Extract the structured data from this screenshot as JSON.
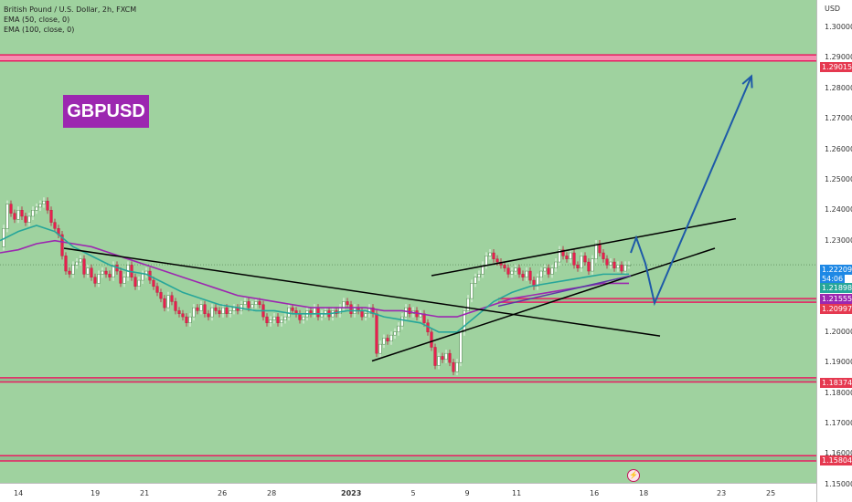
{
  "legend": {
    "title": "British Pound / U.S. Dollar, 2h, FXCM",
    "ema50": "EMA (50, close, 0)",
    "ema100": "EMA (100, close, 0)"
  },
  "badge": "GBPUSD",
  "currency": "USD",
  "price_tags": [
    {
      "value": "1.29015",
      "color": "#e53950"
    },
    {
      "value": "1.22209",
      "color": "#1e88e5"
    },
    {
      "value": "54:06",
      "color": "#1e88e5"
    },
    {
      "value": "1.21898",
      "color": "#26a69a"
    },
    {
      "value": "1.21555",
      "color": "#9c27b0"
    },
    {
      "value": "1.20997",
      "color": "#e53950"
    },
    {
      "value": "1.18374",
      "color": "#e53950"
    },
    {
      "value": "1.15804",
      "color": "#e53950"
    }
  ],
  "chart_data": {
    "type": "candlestick",
    "symbol": "GBPUSD",
    "timeframe": "2h",
    "ylim": [
      1.1505,
      1.309
    ],
    "y_ticks": [
      "1.30000",
      "1.29000",
      "1.28000",
      "1.27000",
      "1.26000",
      "1.25000",
      "1.24000",
      "1.23000",
      "1.22000",
      "1.21000",
      "1.20000",
      "1.19000",
      "1.18000",
      "1.17000",
      "1.16000",
      "1.15000"
    ],
    "x_ticks": [
      "14",
      "19",
      "21",
      "26",
      "28",
      "2023",
      "5",
      "9",
      "11",
      "16",
      "18",
      "23",
      "25"
    ],
    "close_path": [
      [
        0,
        1.228
      ],
      [
        4,
        1.234
      ],
      [
        8,
        1.242
      ],
      [
        12,
        1.239
      ],
      [
        16,
        1.237
      ],
      [
        20,
        1.24
      ],
      [
        24,
        1.238
      ],
      [
        28,
        1.236
      ],
      [
        32,
        1.238
      ],
      [
        36,
        1.24
      ],
      [
        40,
        1.241
      ],
      [
        44,
        1.242
      ],
      [
        48,
        1.243
      ],
      [
        52,
        1.24
      ],
      [
        56,
        1.236
      ],
      [
        60,
        1.234
      ],
      [
        64,
        1.232
      ],
      [
        68,
        1.225
      ],
      [
        72,
        1.22
      ],
      [
        76,
        1.219
      ],
      [
        80,
        1.222
      ],
      [
        84,
        1.223
      ],
      [
        88,
        1.224
      ],
      [
        92,
        1.219
      ],
      [
        96,
        1.221
      ],
      [
        100,
        1.218
      ],
      [
        104,
        1.216
      ],
      [
        108,
        1.219
      ],
      [
        112,
        1.22
      ],
      [
        116,
        1.219
      ],
      [
        120,
        1.218
      ],
      [
        124,
        1.222
      ],
      [
        128,
        1.22
      ],
      [
        132,
        1.216
      ],
      [
        136,
        1.218
      ],
      [
        140,
        1.222
      ],
      [
        144,
        1.218
      ],
      [
        148,
        1.215
      ],
      [
        152,
        1.217
      ],
      [
        156,
        1.219
      ],
      [
        160,
        1.22
      ],
      [
        164,
        1.217
      ],
      [
        168,
        1.215
      ],
      [
        172,
        1.213
      ],
      [
        176,
        1.211
      ],
      [
        180,
        1.208
      ],
      [
        184,
        1.212
      ],
      [
        188,
        1.21
      ],
      [
        192,
        1.207
      ],
      [
        196,
        1.206
      ],
      [
        200,
        1.205
      ],
      [
        204,
        1.203
      ],
      [
        208,
        1.205
      ],
      [
        212,
        1.208
      ],
      [
        216,
        1.207
      ],
      [
        220,
        1.209
      ],
      [
        224,
        1.206
      ],
      [
        228,
        1.205
      ],
      [
        232,
        1.208
      ],
      [
        236,
        1.207
      ],
      [
        240,
        1.206
      ],
      [
        244,
        1.208
      ],
      [
        248,
        1.206
      ],
      [
        252,
        1.207
      ],
      [
        256,
        1.208
      ],
      [
        260,
        1.207
      ],
      [
        264,
        1.209
      ],
      [
        268,
        1.21
      ],
      [
        272,
        1.208
      ],
      [
        276,
        1.209
      ],
      [
        280,
        1.21
      ],
      [
        284,
        1.209
      ],
      [
        288,
        1.205
      ],
      [
        292,
        1.203
      ],
      [
        296,
        1.204
      ],
      [
        300,
        1.205
      ],
      [
        304,
        1.203
      ],
      [
        308,
        1.204
      ],
      [
        312,
        1.205
      ],
      [
        316,
        1.208
      ],
      [
        320,
        1.207
      ],
      [
        324,
        1.206
      ],
      [
        328,
        1.204
      ],
      [
        332,
        1.205
      ],
      [
        336,
        1.207
      ],
      [
        340,
        1.206
      ],
      [
        344,
        1.208
      ],
      [
        348,
        1.205
      ],
      [
        352,
        1.206
      ],
      [
        356,
        1.207
      ],
      [
        360,
        1.205
      ],
      [
        364,
        1.207
      ],
      [
        368,
        1.206
      ],
      [
        372,
        1.208
      ],
      [
        376,
        1.21
      ],
      [
        380,
        1.209
      ],
      [
        384,
        1.206
      ],
      [
        388,
        1.208
      ],
      [
        392,
        1.207
      ],
      [
        396,
        1.205
      ],
      [
        400,
        1.206
      ],
      [
        404,
        1.208
      ],
      [
        408,
        1.206
      ],
      [
        412,
        1.193
      ],
      [
        416,
        1.196
      ],
      [
        420,
        1.198
      ],
      [
        424,
        1.197
      ],
      [
        428,
        1.199
      ],
      [
        432,
        1.2
      ],
      [
        436,
        1.202
      ],
      [
        440,
        1.205
      ],
      [
        444,
        1.208
      ],
      [
        448,
        1.206
      ],
      [
        452,
        1.207
      ],
      [
        456,
        1.205
      ],
      [
        460,
        1.206
      ],
      [
        464,
        1.203
      ],
      [
        468,
        1.2
      ],
      [
        472,
        1.195
      ],
      [
        476,
        1.189
      ],
      [
        480,
        1.192
      ],
      [
        484,
        1.191
      ],
      [
        488,
        1.193
      ],
      [
        492,
        1.19
      ],
      [
        496,
        1.187
      ],
      [
        500,
        1.19
      ],
      [
        504,
        1.2
      ],
      [
        508,
        1.207
      ],
      [
        512,
        1.211
      ],
      [
        516,
        1.216
      ],
      [
        520,
        1.218
      ],
      [
        524,
        1.219
      ],
      [
        528,
        1.222
      ],
      [
        532,
        1.225
      ],
      [
        536,
        1.226
      ],
      [
        540,
        1.224
      ],
      [
        544,
        1.223
      ],
      [
        548,
        1.222
      ],
      [
        552,
        1.221
      ],
      [
        556,
        1.219
      ],
      [
        560,
        1.22
      ],
      [
        564,
        1.221
      ],
      [
        568,
        1.219
      ],
      [
        572,
        1.218
      ],
      [
        576,
        1.22
      ],
      [
        580,
        1.217
      ],
      [
        584,
        1.215
      ],
      [
        588,
        1.218
      ],
      [
        592,
        1.22
      ],
      [
        596,
        1.221
      ],
      [
        600,
        1.219
      ],
      [
        604,
        1.221
      ],
      [
        608,
        1.223
      ],
      [
        612,
        1.227
      ],
      [
        616,
        1.225
      ],
      [
        620,
        1.224
      ],
      [
        624,
        1.226
      ],
      [
        628,
        1.222
      ],
      [
        632,
        1.221
      ],
      [
        636,
        1.225
      ],
      [
        640,
        1.223
      ],
      [
        644,
        1.22
      ],
      [
        648,
        1.224
      ],
      [
        652,
        1.229
      ],
      [
        656,
        1.226
      ],
      [
        660,
        1.224
      ],
      [
        664,
        1.222
      ],
      [
        668,
        1.223
      ],
      [
        672,
        1.221
      ],
      [
        676,
        1.222
      ],
      [
        680,
        1.22
      ],
      [
        684,
        1.222
      ],
      [
        688,
        1.222
      ]
    ],
    "ema50_path": [
      [
        0,
        1.23
      ],
      [
        20,
        1.233
      ],
      [
        40,
        1.235
      ],
      [
        60,
        1.233
      ],
      [
        80,
        1.228
      ],
      [
        100,
        1.225
      ],
      [
        120,
        1.222
      ],
      [
        140,
        1.22
      ],
      [
        160,
        1.219
      ],
      [
        180,
        1.216
      ],
      [
        200,
        1.213
      ],
      [
        220,
        1.211
      ],
      [
        240,
        1.209
      ],
      [
        260,
        1.208
      ],
      [
        280,
        1.207
      ],
      [
        300,
        1.207
      ],
      [
        320,
        1.206
      ],
      [
        340,
        1.206
      ],
      [
        360,
        1.206
      ],
      [
        380,
        1.207
      ],
      [
        400,
        1.207
      ],
      [
        420,
        1.205
      ],
      [
        440,
        1.204
      ],
      [
        460,
        1.203
      ],
      [
        480,
        1.2
      ],
      [
        500,
        1.2
      ],
      [
        520,
        1.205
      ],
      [
        540,
        1.21
      ],
      [
        560,
        1.213
      ],
      [
        580,
        1.215
      ],
      [
        600,
        1.216
      ],
      [
        620,
        1.217
      ],
      [
        640,
        1.218
      ],
      [
        660,
        1.219
      ],
      [
        688,
        1.219
      ]
    ],
    "ema100_path": [
      [
        0,
        1.226
      ],
      [
        20,
        1.227
      ],
      [
        40,
        1.229
      ],
      [
        60,
        1.23
      ],
      [
        80,
        1.229
      ],
      [
        100,
        1.228
      ],
      [
        120,
        1.226
      ],
      [
        140,
        1.224
      ],
      [
        160,
        1.222
      ],
      [
        180,
        1.22
      ],
      [
        200,
        1.218
      ],
      [
        220,
        1.216
      ],
      [
        240,
        1.214
      ],
      [
        260,
        1.212
      ],
      [
        280,
        1.211
      ],
      [
        300,
        1.21
      ],
      [
        320,
        1.209
      ],
      [
        340,
        1.208
      ],
      [
        360,
        1.208
      ],
      [
        380,
        1.208
      ],
      [
        400,
        1.208
      ],
      [
        420,
        1.207
      ],
      [
        440,
        1.207
      ],
      [
        460,
        1.206
      ],
      [
        480,
        1.205
      ],
      [
        500,
        1.205
      ],
      [
        520,
        1.207
      ],
      [
        540,
        1.209
      ],
      [
        560,
        1.211
      ],
      [
        580,
        1.212
      ],
      [
        600,
        1.213
      ],
      [
        620,
        1.214
      ],
      [
        640,
        1.215
      ],
      [
        660,
        1.216
      ],
      [
        688,
        1.216
      ]
    ],
    "trendlines": [
      {
        "from": [
          70,
          1.2275
        ],
        "to": [
          722,
          1.1987
        ],
        "color": "#000000"
      },
      {
        "from": [
          407,
          1.1905
        ],
        "to": [
          782,
          1.2275
        ],
        "color": "#000000"
      },
      {
        "from": [
          472,
          1.2185
        ],
        "to": [
          805,
          1.2372
        ],
        "color": "#000000"
      },
      {
        "from": [
          545,
          1.2085
        ],
        "to": [
          690,
          1.2185
        ],
        "color": "#5c35a6"
      }
    ],
    "projection": [
      [
        690,
        1.226
      ],
      [
        696,
        1.231
      ],
      [
        706,
        1.2225
      ],
      [
        716,
        1.2095
      ],
      [
        822,
        1.284
      ]
    ],
    "zones": [
      {
        "ymin": 1.289,
        "ymax": 1.291,
        "fill": "#f48fb1",
        "edge": "#e91e63"
      },
      {
        "ymin": 1.1836,
        "ymax": 1.185,
        "fill": "#8fbf8f",
        "edge": "#e91e63"
      },
      {
        "ymin": 1.1577,
        "ymax": 1.1594,
        "fill": "#8fbf8f",
        "edge": "#e91e63"
      },
      {
        "ymin": 1.2098,
        "ymax": 1.211,
        "fill": "#8fbf8f",
        "edge": "#e91e63",
        "xmin": 545
      }
    ],
    "last_price": 1.22209
  }
}
